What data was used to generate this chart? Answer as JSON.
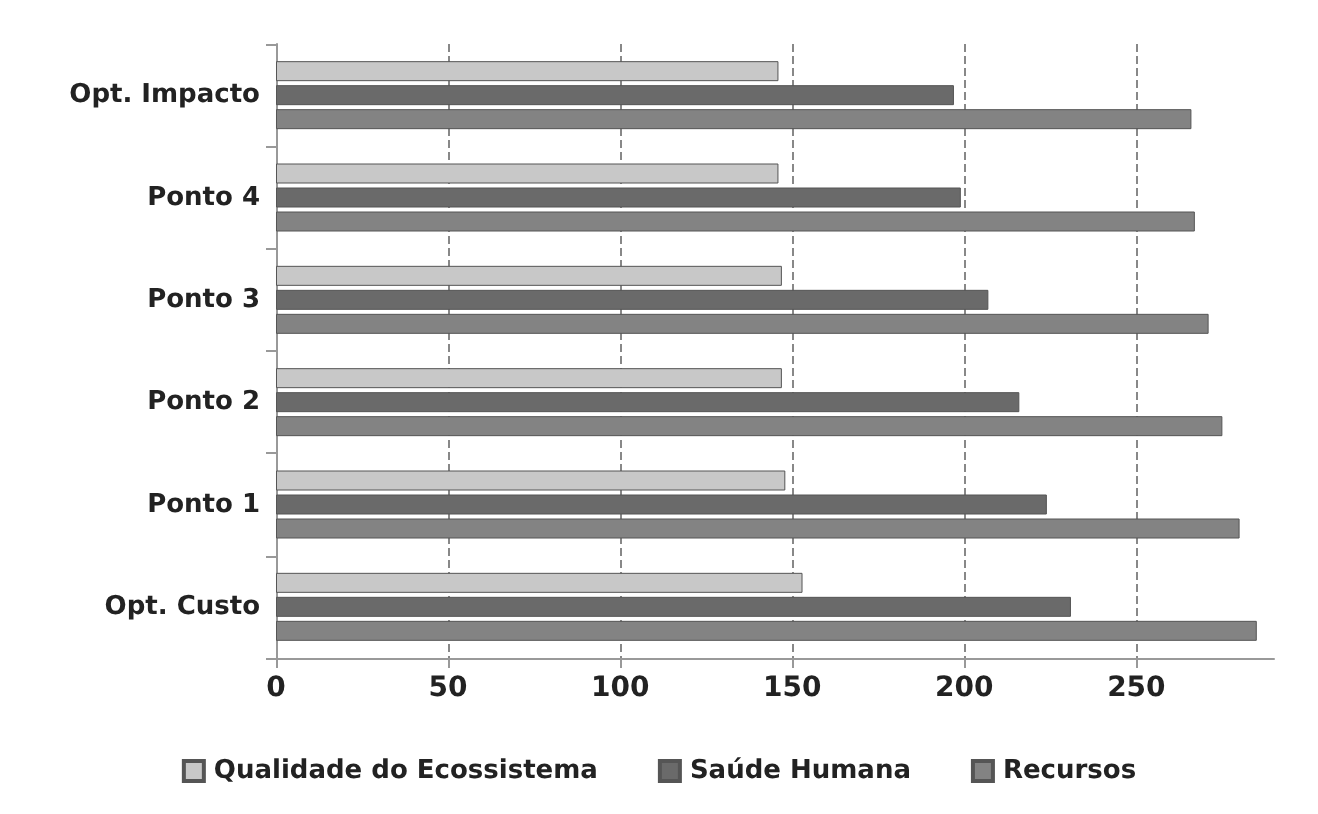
{
  "chart_data": {
    "type": "bar",
    "orientation": "horizontal",
    "categories": [
      "Opt. Impacto",
      "Ponto 4",
      "Ponto 3",
      "Ponto 2",
      "Ponto 1",
      "Opt. Custo"
    ],
    "series": [
      {
        "name": "Qualidade do Ecossistema",
        "color": "#c8c8c8",
        "values": [
          146,
          146,
          147,
          147,
          148,
          153
        ]
      },
      {
        "name": "Saúde Humana",
        "color": "#6a6a6a",
        "values": [
          197,
          199,
          207,
          216,
          224,
          231
        ]
      },
      {
        "name": "Recursos",
        "color": "#838383",
        "values": [
          266,
          267,
          271,
          275,
          280,
          285
        ]
      }
    ],
    "xlim": [
      0,
      290
    ],
    "xticks": [
      0,
      50,
      100,
      150,
      200,
      250
    ],
    "grid": "x",
    "legend": "bottom"
  }
}
